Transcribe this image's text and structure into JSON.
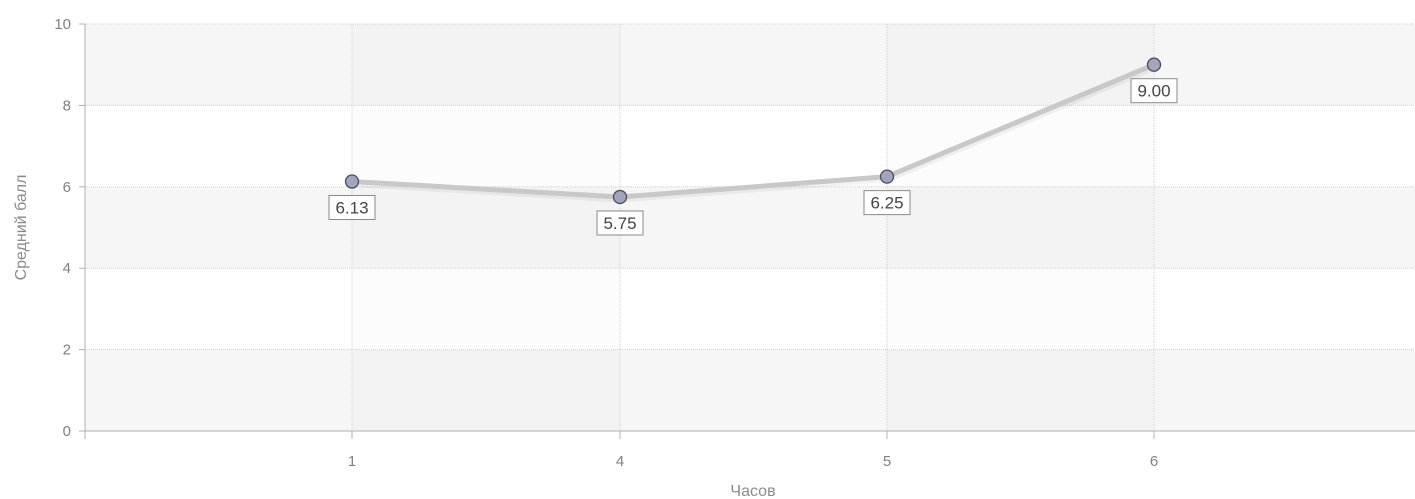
{
  "chart_data": {
    "type": "line",
    "categories": [
      "1",
      "4",
      "5",
      "6"
    ],
    "values": [
      6.13,
      5.75,
      6.25,
      9.0
    ],
    "data_labels": [
      "6.13",
      "5.75",
      "6.25",
      "9.00"
    ],
    "xlabel": "Часов",
    "ylabel": "Средний балл",
    "ylim": [
      0,
      10
    ],
    "yticks": [
      "0",
      "2",
      "4",
      "6",
      "8",
      "10"
    ],
    "grid": true,
    "colors": {
      "line": "#c8c8c8",
      "marker_fill": "#a3a5bb",
      "marker_stroke": "#4a4a66",
      "band": "#f6f6f6",
      "grid": "#d0d0d0",
      "axis": "#b0b0b0"
    }
  }
}
